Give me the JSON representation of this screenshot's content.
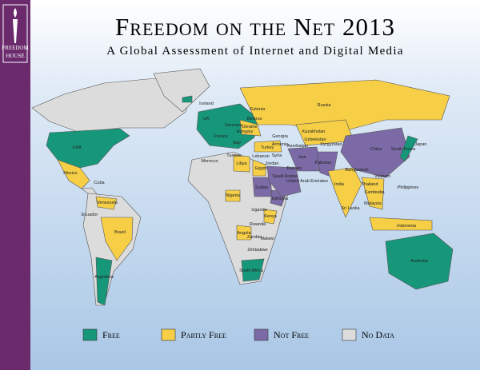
{
  "header": {
    "title": "Freedom on the Net 2013",
    "subtitle": "A Global Assessment of Internet and Digital Media",
    "logo_top": "FREEDOM",
    "logo_bottom": "HOUSE"
  },
  "legend": [
    {
      "label": "Free",
      "color": "#16977a"
    },
    {
      "label": "Partly Free",
      "color": "#f6cf47"
    },
    {
      "label": "Not Free",
      "color": "#7b6aa6"
    },
    {
      "label": "No Data",
      "color": "#dcdcdc"
    }
  ],
  "countries": [
    "Iceland",
    "UK",
    "Germany",
    "France",
    "Italy",
    "Hungary",
    "Estonia",
    "Belarus",
    "Ukraine",
    "Russia",
    "Georgia",
    "Armenia",
    "Azerbaijan",
    "Kazakhstan",
    "Uzbekistan",
    "Kyrgyzstan",
    "Turkey",
    "Lebanon",
    "Syria",
    "Jordan",
    "Iran",
    "Egypt",
    "Libya",
    "Tunisia",
    "Morocco",
    "Saudi Arabia",
    "Bahrain",
    "United Arab Emirates",
    "Pakistan",
    "India",
    "Bangladesh",
    "Sri Lanka",
    "China",
    "Japan",
    "South Korea",
    "Thailand",
    "Cambodia",
    "Vietnam",
    "Malaysia",
    "Philippines",
    "Indonesia",
    "Australia",
    "USA",
    "Mexico",
    "Cuba",
    "Venezuela",
    "Ecuador",
    "Brazil",
    "Argentina",
    "Nigeria",
    "Sudan",
    "Ethiopia",
    "Kenya",
    "Uganda",
    "Rwanda",
    "Angola",
    "Zambia",
    "Malawi",
    "Zimbabwe",
    "South Africa"
  ]
}
